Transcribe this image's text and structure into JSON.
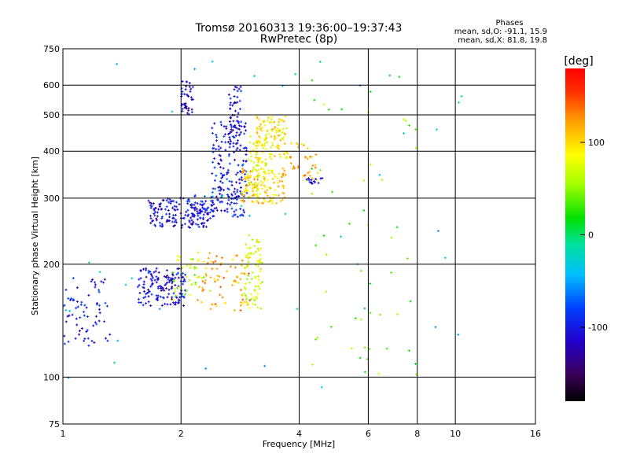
{
  "chart_data": {
    "type": "scatter",
    "title": "Tromsø 20160313 19:36:00–19:37:43",
    "subtitle": "RwPretec (8p)",
    "xlabel": "Frequency [MHz]",
    "ylabel": "Stationary phase Virtual Height [km]",
    "x_scale": "log",
    "y_scale": "log",
    "xlim": [
      1,
      16
    ],
    "ylim": [
      75,
      750
    ],
    "x_ticks": [
      1,
      2,
      4,
      6,
      8,
      10,
      16
    ],
    "x_tick_labels": [
      "1",
      "2",
      "4",
      "6",
      "8",
      "10",
      "16"
    ],
    "y_ticks": [
      75,
      100,
      200,
      300,
      400,
      500,
      600,
      750
    ],
    "y_tick_labels": [
      "75",
      "100",
      "200",
      "300",
      "400",
      "500",
      "600",
      "750"
    ],
    "grid": true,
    "phase_stats": {
      "heading": "Phases",
      "line_o": "mean, sd,O: -91.1, 15.9",
      "line_x": "mean, sd,X: 81.8, 19.8"
    },
    "colorbar": {
      "label": "[deg]",
      "range": [
        -180,
        180
      ],
      "ticks": [
        100,
        0,
        -100
      ],
      "tick_labels": [
        "100",
        "0",
        "-100"
      ],
      "colormap": "rainbow"
    },
    "clusters": [
      {
        "f": [
          1.0,
          1.32
        ],
        "h": [
          120,
          185
        ],
        "phase": -105,
        "count": 70
      },
      {
        "f": [
          1.55,
          2.05
        ],
        "h": [
          155,
          195
        ],
        "phase": -110,
        "count": 150
      },
      {
        "f": [
          1.9,
          2.3
        ],
        "h": [
          160,
          215
        ],
        "phase": 60,
        "count": 40
      },
      {
        "f": [
          2.2,
          3.0
        ],
        "h": [
          150,
          215
        ],
        "phase": 120,
        "count": 80
      },
      {
        "f": [
          2.9,
          3.25
        ],
        "h": [
          150,
          240
        ],
        "phase": 75,
        "count": 80
      },
      {
        "f": [
          1.65,
          2.35
        ],
        "h": [
          250,
          300
        ],
        "phase": -110,
        "count": 160
      },
      {
        "f": [
          2.15,
          2.9
        ],
        "h": [
          265,
          310
        ],
        "phase": -100,
        "count": 80
      },
      {
        "f": [
          2.4,
          2.95
        ],
        "h": [
          300,
          480
        ],
        "phase": -100,
        "count": 140
      },
      {
        "f": [
          2.65,
          2.85
        ],
        "h": [
          400,
          600
        ],
        "phase": -110,
        "count": 60
      },
      {
        "f": [
          2.0,
          2.15
        ],
        "h": [
          500,
          615
        ],
        "phase": -110,
        "count": 40
      },
      {
        "f": [
          2.85,
          3.7
        ],
        "h": [
          290,
          360
        ],
        "phase": 100,
        "count": 150
      },
      {
        "f": [
          3.1,
          3.75
        ],
        "h": [
          380,
          500
        ],
        "phase": 95,
        "count": 110
      },
      {
        "f": [
          2.95,
          3.3
        ],
        "h": [
          320,
          440
        ],
        "phase": 80,
        "count": 50
      },
      {
        "f": [
          3.8,
          4.5
        ],
        "h": [
          330,
          420
        ],
        "phase": 120,
        "count": 35
      },
      {
        "f": [
          4.1,
          4.6
        ],
        "h": [
          320,
          340
        ],
        "phase": -105,
        "count": 15
      },
      {
        "f": [
          4.3,
          8.0
        ],
        "h": [
          100,
          650
        ],
        "phase": 40,
        "count": 55
      },
      {
        "f": [
          1.0,
          10.5
        ],
        "h": [
          80,
          700
        ],
        "phase": -30,
        "count": 40
      }
    ]
  }
}
